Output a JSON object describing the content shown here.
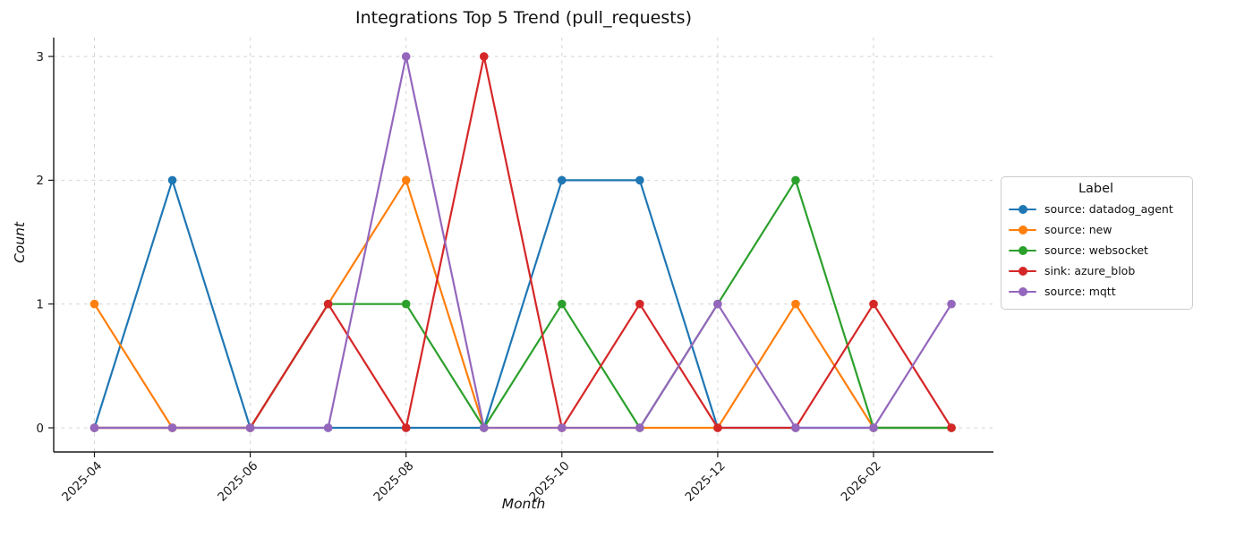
{
  "chart_data": {
    "type": "line",
    "title": "Integrations Top 5 Trend (pull_requests)",
    "xlabel": "Month",
    "ylabel": "Count",
    "legend_title": "Label",
    "legend_position": "right-outside",
    "grid": "dashed",
    "x": [
      "2025-04",
      "2025-05",
      "2025-06",
      "2025-07",
      "2025-08",
      "2025-09",
      "2025-10",
      "2025-11",
      "2025-12",
      "2026-01",
      "2026-02",
      "2026-03"
    ],
    "xtick_labels": [
      "2025-04",
      "2025-06",
      "2025-08",
      "2025-10",
      "2025-12",
      "2026-02"
    ],
    "yticks": [
      "0",
      "1",
      "2",
      "3"
    ],
    "ylim": [
      -0.2,
      3.15
    ],
    "series": [
      {
        "name": "source: datadog_agent",
        "color": "#1f77b4",
        "values": [
          0,
          2,
          0,
          0,
          0,
          0,
          2,
          2,
          0,
          0,
          0,
          0
        ]
      },
      {
        "name": "source: new",
        "color": "#ff7f0e",
        "values": [
          1,
          0,
          0,
          1,
          2,
          0,
          0,
          0,
          0,
          1,
          0,
          0
        ]
      },
      {
        "name": "source: websocket",
        "color": "#2ca02c",
        "values": [
          0,
          0,
          0,
          1,
          1,
          0,
          1,
          0,
          1,
          2,
          0,
          0
        ]
      },
      {
        "name": "sink: azure_blob",
        "color": "#d62728",
        "values": [
          0,
          0,
          0,
          1,
          0,
          3,
          0,
          1,
          0,
          0,
          1,
          0
        ]
      },
      {
        "name": "source: mqtt",
        "color": "#9467bd",
        "values": [
          0,
          0,
          0,
          0,
          3,
          0,
          0,
          0,
          1,
          0,
          0,
          1
        ]
      }
    ]
  }
}
